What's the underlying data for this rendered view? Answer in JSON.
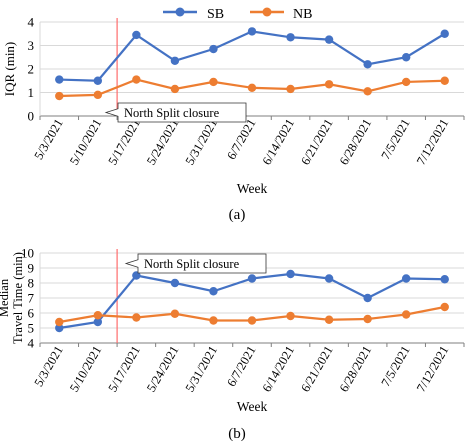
{
  "colors": {
    "SB": "#4472C4",
    "NB": "#ED7D31",
    "marker_line": "#FF6B6B",
    "grid": "#D9D9D9",
    "axis": "#7F7F7F"
  },
  "legend": {
    "items": [
      "SB",
      "NB"
    ],
    "placement": "top-center"
  },
  "chart_data": [
    {
      "type": "line",
      "caption": "(a)",
      "categories": [
        "5/3/2021",
        "5/10/2021",
        "5/17/2021",
        "5/24/2021",
        "5/31/2021",
        "6/7/2021",
        "6/14/2021",
        "6/21/2021",
        "6/28/2021",
        "7/5/2021",
        "7/12/2021"
      ],
      "series": [
        {
          "name": "SB",
          "values": [
            1.55,
            1.5,
            3.45,
            2.35,
            2.85,
            3.6,
            3.35,
            3.25,
            2.2,
            2.5,
            3.5
          ]
        },
        {
          "name": "NB",
          "values": [
            0.85,
            0.9,
            1.55,
            1.15,
            1.45,
            1.2,
            1.15,
            1.35,
            1.05,
            1.45,
            1.5
          ]
        }
      ],
      "xlabel": "Week",
      "ylabel": "IQR (min)",
      "ylim": [
        0,
        4
      ],
      "yticks": [
        0,
        1,
        2,
        3,
        4
      ],
      "grid": true,
      "annotation": {
        "text": "North Split closure",
        "between_categories": [
          "5/10/2021",
          "5/17/2021"
        ]
      }
    },
    {
      "type": "line",
      "caption": "(b)",
      "categories": [
        "5/3/2021",
        "5/10/2021",
        "5/17/2021",
        "5/24/2021",
        "5/31/2021",
        "6/7/2021",
        "6/14/2021",
        "6/21/2021",
        "6/28/2021",
        "7/5/2021",
        "7/12/2021"
      ],
      "series": [
        {
          "name": "SB",
          "values": [
            5.0,
            5.4,
            8.5,
            8.0,
            7.45,
            8.3,
            8.6,
            8.3,
            7.0,
            8.3,
            8.25
          ]
        },
        {
          "name": "NB",
          "values": [
            5.4,
            5.85,
            5.7,
            5.95,
            5.5,
            5.5,
            5.8,
            5.55,
            5.6,
            5.9,
            6.4
          ]
        }
      ],
      "xlabel": "Week",
      "ylabel": [
        "Median",
        "Travel Time (min)"
      ],
      "ylim": [
        4,
        10
      ],
      "yticks": [
        4,
        5,
        6,
        7,
        8,
        9,
        10
      ],
      "grid": true,
      "annotation": {
        "text": "North Split closure",
        "between_categories": [
          "5/10/2021",
          "5/17/2021"
        ]
      }
    }
  ]
}
